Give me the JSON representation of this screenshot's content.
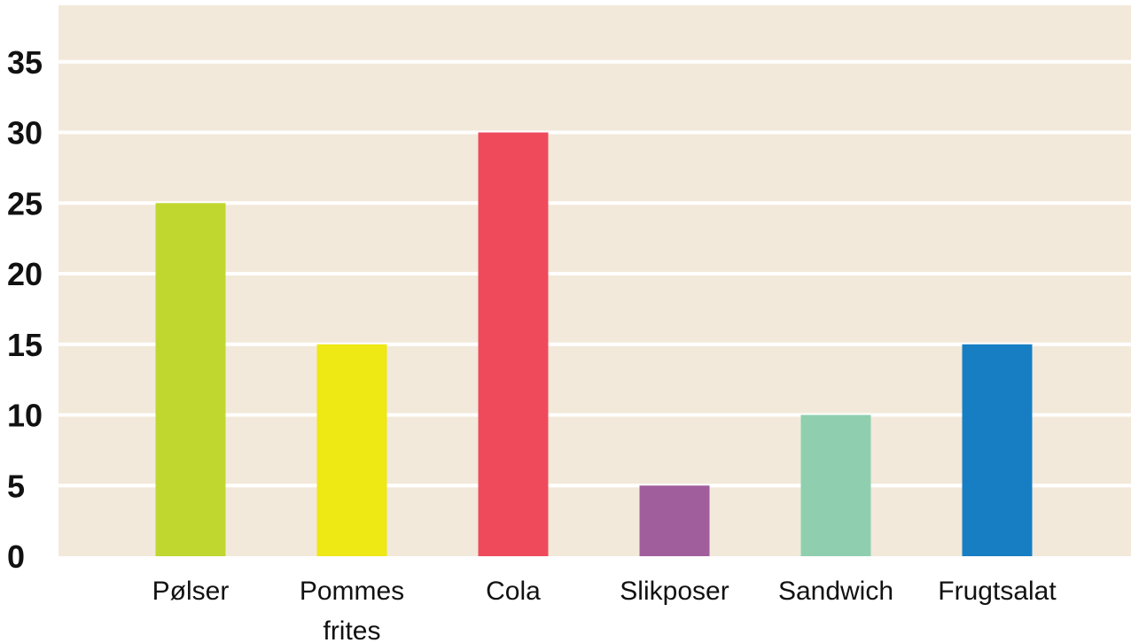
{
  "chart_data": {
    "type": "bar",
    "title": "",
    "xlabel": "",
    "ylabel": "",
    "categories": [
      "Pølser",
      "Pommes frites",
      "Cola",
      "Slikposer",
      "Sandwich",
      "Frugtsalat"
    ],
    "category_lines": [
      [
        "Pølser"
      ],
      [
        "Pommes",
        "frites"
      ],
      [
        "Cola"
      ],
      [
        "Slikposer"
      ],
      [
        "Sandwich"
      ],
      [
        "Frugtsalat"
      ]
    ],
    "values": [
      25,
      15,
      30,
      5,
      10,
      15
    ],
    "colors": [
      "#c0d730",
      "#eee814",
      "#ef4a5c",
      "#a05f9c",
      "#8fcfb0",
      "#187ec4"
    ],
    "ylim": [
      0,
      39
    ],
    "yticks": [
      0,
      5,
      10,
      15,
      20,
      25,
      30,
      35
    ],
    "grid": true,
    "background": "#f2e9da",
    "grid_color": "#ffffff"
  }
}
